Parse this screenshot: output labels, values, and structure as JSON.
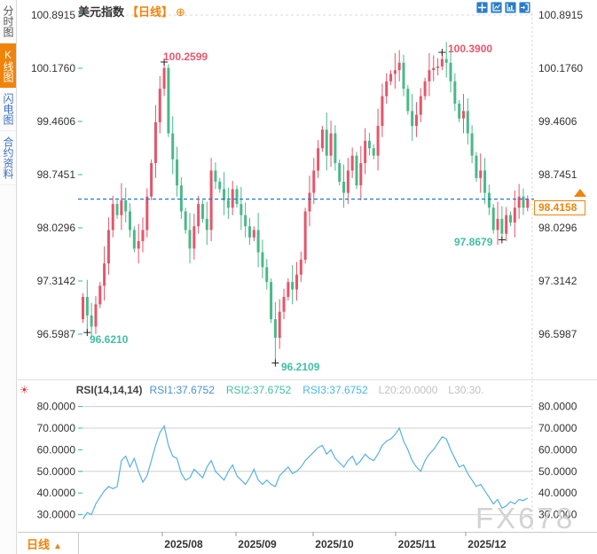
{
  "window": {
    "title": "美元指数",
    "period": "【日线】",
    "add_icon": "⊕"
  },
  "sidebar": {
    "items": [
      {
        "label": "分时图",
        "active": false
      },
      {
        "label": "K线图",
        "active": true
      },
      {
        "label": "闪电图",
        "active": false
      },
      {
        "label": "合约资料",
        "active": false
      }
    ]
  },
  "toolbar": {
    "icons": [
      "crosshair-pan-icon",
      "axis-range-icon",
      "axis-zoom-icon",
      "exit-chart-icon"
    ]
  },
  "colors": {
    "accent_orange": "#f0830a",
    "up_red": "#e4566a",
    "down_green": "#4bb88a",
    "rsi_line": "#59b1dc",
    "price_line_blue": "#1d7ad1",
    "annotation_red": "#e8566d",
    "annotation_teal": "#3fbfa3"
  },
  "chart_data": [
    {
      "type": "candlestick",
      "title": "美元指数 日线",
      "ylabel": "",
      "y_ticks": [
        "100.8915",
        "100.1760",
        "99.4606",
        "98.7451",
        "98.0296",
        "97.3142",
        "96.5987"
      ],
      "ylim": [
        96.2109,
        100.8915
      ],
      "x_ticks": [
        "2025/08",
        "2025/09",
        "2025/10",
        "2025/11",
        "2025/12"
      ],
      "first_open": 96.8,
      "closes": [
        97.1,
        96.85,
        96.7,
        97.0,
        97.25,
        97.55,
        98.0,
        98.35,
        98.2,
        98.4,
        98.25,
        98.0,
        97.75,
        97.85,
        98.0,
        98.45,
        98.9,
        99.45,
        99.9,
        100.18,
        99.3,
        98.95,
        98.6,
        98.25,
        98.0,
        97.75,
        98.05,
        98.35,
        98.15,
        98.0,
        98.8,
        98.65,
        98.55,
        98.4,
        98.3,
        98.55,
        98.35,
        98.2,
        98.05,
        97.9,
        98.0,
        97.7,
        97.5,
        97.3,
        96.8,
        96.55,
        96.9,
        97.1,
        97.3,
        97.2,
        97.4,
        97.6,
        98.25,
        98.5,
        98.8,
        99.1,
        99.35,
        99.0,
        99.3,
        98.9,
        98.65,
        98.5,
        98.8,
        99.0,
        98.6,
        98.9,
        99.2,
        99.1,
        99.0,
        99.4,
        99.8,
        100.0,
        100.1,
        100.15,
        100.25,
        99.9,
        99.6,
        99.4,
        99.55,
        99.8,
        100.0,
        100.15,
        100.18,
        100.2,
        100.3,
        100.25,
        100.0,
        99.7,
        99.5,
        99.6,
        99.3,
        99.0,
        98.7,
        98.8,
        98.5,
        98.3,
        98.0,
        98.15,
        97.95,
        98.2,
        98.1,
        98.3,
        98.45,
        98.3,
        98.4158
      ],
      "overrides": {
        "1": {
          "l": 96.621
        },
        "19": {
          "h": 100.2599
        },
        "45": {
          "l": 96.2109
        },
        "84": {
          "h": 100.39
        },
        "98": {
          "l": 97.8679
        }
      },
      "last_price": "98.4158",
      "key_points": {
        "high1": {
          "text": "100.2599"
        },
        "high2": {
          "text": "100.3900"
        },
        "low1": {
          "text": "96.6210"
        },
        "low2": {
          "text": "96.2109"
        },
        "low3": {
          "text": "97.8679"
        }
      }
    },
    {
      "type": "line",
      "name": "RSI(14,14,14)",
      "y_ticks": [
        "80.0000",
        "70.0000",
        "60.0000",
        "50.0000",
        "40.0000",
        "30.0000"
      ],
      "levels": [
        80,
        70,
        50,
        30
      ],
      "values": [
        28,
        31,
        30,
        35,
        38,
        41,
        43,
        42,
        43,
        55,
        57,
        52,
        56,
        50,
        45,
        48,
        55,
        62,
        68,
        71,
        62,
        57,
        56,
        49,
        46,
        47,
        51,
        49,
        47,
        52,
        55,
        50,
        48,
        46,
        50,
        53,
        48,
        46,
        44,
        47,
        51,
        46,
        44,
        46,
        44,
        43,
        48,
        50,
        52,
        49,
        50,
        52,
        55,
        57,
        59,
        61,
        62,
        58,
        60,
        56,
        54,
        52,
        55,
        57,
        53,
        55,
        58,
        56,
        55,
        58,
        62,
        64,
        65,
        67,
        70,
        64,
        60,
        55,
        52,
        50,
        55,
        58,
        60,
        63,
        66,
        65,
        60,
        56,
        52,
        53,
        49,
        46,
        43,
        44,
        41,
        38,
        35,
        37,
        33,
        34,
        36,
        35,
        37,
        36.5,
        37.68
      ]
    }
  ],
  "rsi_header": {
    "name": "RSI(14,14,14)",
    "rsi1": "RSI1:37.6752",
    "rsi2": "RSI2:37.6752",
    "rsi3": "RSI3:37.6752",
    "l20": "L20:20.0000",
    "l30": "L30:30."
  },
  "price_tag": {
    "value": "98.4158"
  },
  "bottom_bar": {
    "period_label": "日线",
    "arrow": "▲"
  },
  "watermark": "FX678"
}
